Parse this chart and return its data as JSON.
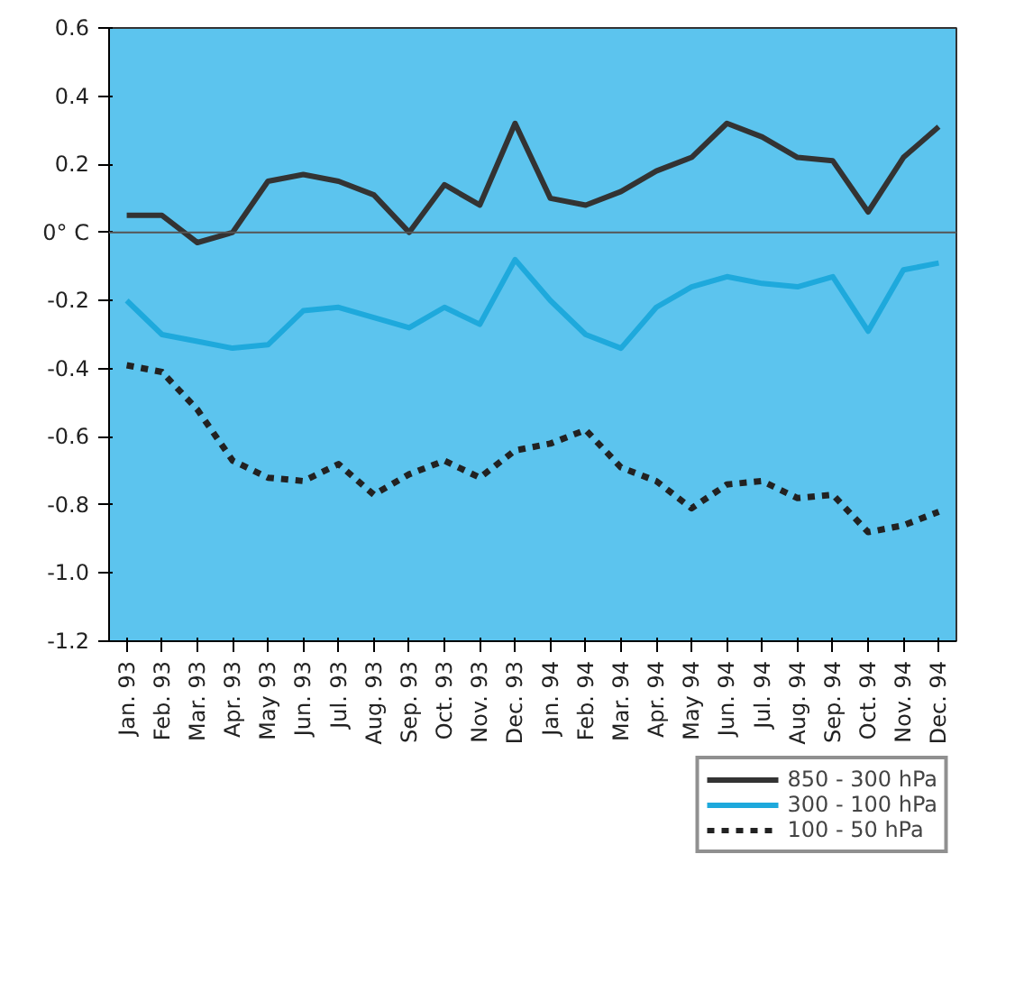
{
  "chart_data": {
    "type": "line",
    "categories": [
      "Jan. 93",
      "Feb. 93",
      "Mar. 93",
      "Apr. 93",
      "May 93",
      "Jun. 93",
      "Jul. 93",
      "Aug. 93",
      "Sep. 93",
      "Oct. 93",
      "Nov. 93",
      "Dec. 93",
      "Jan. 94",
      "Feb. 94",
      "Mar. 94",
      "Apr. 94",
      "May 94",
      "Jun. 94",
      "Jul. 94",
      "Aug. 94",
      "Sep. 94",
      "Oct. 94",
      "Nov. 94",
      "Dec. 94"
    ],
    "series": [
      {
        "name": "850 - 300 hPa",
        "color": "#333333",
        "line_style": "solid",
        "values": [
          0.05,
          0.05,
          -0.03,
          0.0,
          0.15,
          0.17,
          0.15,
          0.11,
          0.0,
          0.14,
          0.08,
          0.32,
          0.1,
          0.08,
          0.12,
          0.18,
          0.22,
          0.32,
          0.28,
          0.22,
          0.21,
          0.06,
          0.22,
          0.31
        ]
      },
      {
        "name": "300 - 100 hPa",
        "color": "#1ea9dc",
        "line_style": "solid",
        "values": [
          -0.2,
          -0.3,
          -0.32,
          -0.34,
          -0.33,
          -0.23,
          -0.22,
          -0.25,
          -0.28,
          -0.22,
          -0.27,
          -0.08,
          -0.2,
          -0.3,
          -0.34,
          -0.22,
          -0.16,
          -0.13,
          -0.15,
          -0.16,
          -0.13,
          -0.29,
          -0.11,
          -0.09
        ]
      },
      {
        "name": "100 - 50 hPa",
        "color": "#222222",
        "line_style": "dotted",
        "values": [
          -0.39,
          -0.41,
          -0.52,
          -0.67,
          -0.72,
          -0.73,
          -0.68,
          -0.77,
          -0.71,
          -0.67,
          -0.72,
          -0.64,
          -0.62,
          -0.58,
          -0.69,
          -0.73,
          -0.81,
          -0.74,
          -0.73,
          -0.78,
          -0.77,
          -0.88,
          -0.86,
          -0.82
        ]
      }
    ],
    "ylim": [
      -1.2,
      0.6
    ],
    "yticks": [
      0.6,
      0.4,
      0.2,
      {
        "value": 0,
        "label": "0° C"
      },
      -0.2,
      -0.4,
      -0.6,
      -0.8,
      {
        "value": -1.0,
        "label": "-1.0"
      },
      -1.2
    ],
    "ref_lines": [
      {
        "axis": "y",
        "value": 0,
        "color": "#555555"
      }
    ],
    "grid": false,
    "legend": "bottom right"
  }
}
